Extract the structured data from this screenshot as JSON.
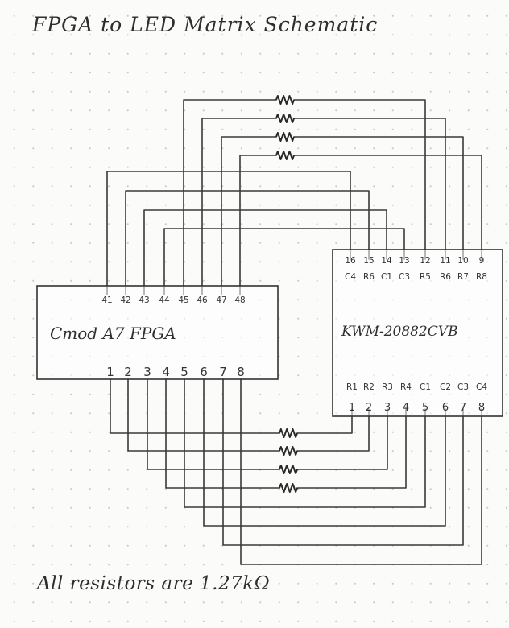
{
  "title": "FPGA to LED Matrix Schematic",
  "note": "All resistors are 1.27kΩ",
  "fpga": {
    "label": "Cmod A7 FPGA",
    "top_pins": [
      "41",
      "42",
      "43",
      "44",
      "45",
      "46",
      "47",
      "48"
    ],
    "bottom_pins": [
      "1",
      "2",
      "3",
      "4",
      "5",
      "6",
      "7",
      "8"
    ]
  },
  "matrix": {
    "label": "KWM-20882CVB",
    "top_pin_numbers": [
      "16",
      "15",
      "14",
      "13",
      "12",
      "11",
      "10",
      "9"
    ],
    "top_pin_names": [
      "C4",
      "R6",
      "C1",
      "C3",
      "R5",
      "R6",
      "R7",
      "R8"
    ],
    "bottom_pin_names": [
      "R1",
      "R2",
      "R3",
      "R4",
      "C1",
      "C2",
      "C3",
      "C4"
    ],
    "bottom_pin_numbers": [
      "1",
      "2",
      "3",
      "4",
      "5",
      "6",
      "7",
      "8"
    ]
  },
  "colors": {
    "ink": "#2e2e2e",
    "paper": "#fbfbfa",
    "grid_dot": "#c9c9c9"
  }
}
